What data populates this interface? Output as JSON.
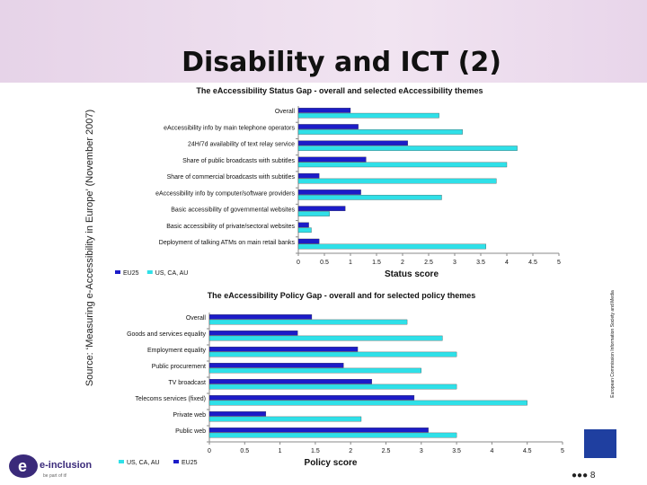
{
  "slide": {
    "title": "Disability and ICT (2)",
    "source": "Source: ‘Measuring e-Accessibility in Europe’ (November 2007)",
    "page_number": "8",
    "logo_text": "e-inclusion",
    "logo_tagline": "be part of it!",
    "ec_text": "European Commission Information Society and Media"
  },
  "colors": {
    "eu25": "#1c1cc8",
    "us_ca_au": "#2fe0e8"
  },
  "chart_data": [
    {
      "type": "bar",
      "title": "The eAccessibility Status Gap - overall and selected eAccessibility themes",
      "categories": [
        "Overall",
        "eAccessibility info by main telephone operators",
        "24H/7d availability of text relay service",
        "Share of public broadcasts with subtitles",
        "Share of commercial broadcasts with subtitles",
        "eAccessibility info by computer/software providers",
        "Basic accessibility of governmental websites",
        "Basic accessibility of private/sectoral websites",
        "Deployment of talking ATMs on main retail banks"
      ],
      "series": [
        {
          "name": "EU25",
          "values": [
            1.0,
            1.15,
            2.1,
            1.3,
            0.4,
            1.2,
            0.9,
            0.2,
            0.4
          ]
        },
        {
          "name": "US, CA, AU",
          "values": [
            2.7,
            3.15,
            4.2,
            4.0,
            3.8,
            2.75,
            0.6,
            0.25,
            3.6
          ]
        }
      ],
      "xlabel": "Status score",
      "xlim": [
        0,
        5
      ],
      "xticks": [
        "0",
        "0.5",
        "1",
        "1.5",
        "2",
        "2.5",
        "3",
        "3.5",
        "4",
        "4.5",
        "5"
      ],
      "legend_position": "bottom-left"
    },
    {
      "type": "bar",
      "title": "The eAccessibility Policy Gap - overall and for selected policy themes",
      "categories": [
        "Overall",
        "Goods and services equality",
        "Employment equality",
        "Public procurement",
        "TV broadcast",
        "Telecoms services (fixed)",
        "Private web",
        "Public web"
      ],
      "series": [
        {
          "name": "EU25",
          "values": [
            1.45,
            1.25,
            2.1,
            1.9,
            2.3,
            2.9,
            0.8,
            3.1
          ]
        },
        {
          "name": "US, CA, AU",
          "values": [
            2.8,
            3.3,
            3.5,
            3.0,
            3.5,
            4.5,
            2.15,
            3.5
          ]
        }
      ],
      "xlabel": "Policy score",
      "xlim": [
        0,
        5
      ],
      "xticks": [
        "0",
        "0.5",
        "1",
        "1.5",
        "2",
        "2.5",
        "3",
        "3.5",
        "4",
        "4.5",
        "5"
      ],
      "legend_order": [
        "US, CA, AU",
        "EU25"
      ],
      "legend_position": "bottom-left"
    }
  ]
}
